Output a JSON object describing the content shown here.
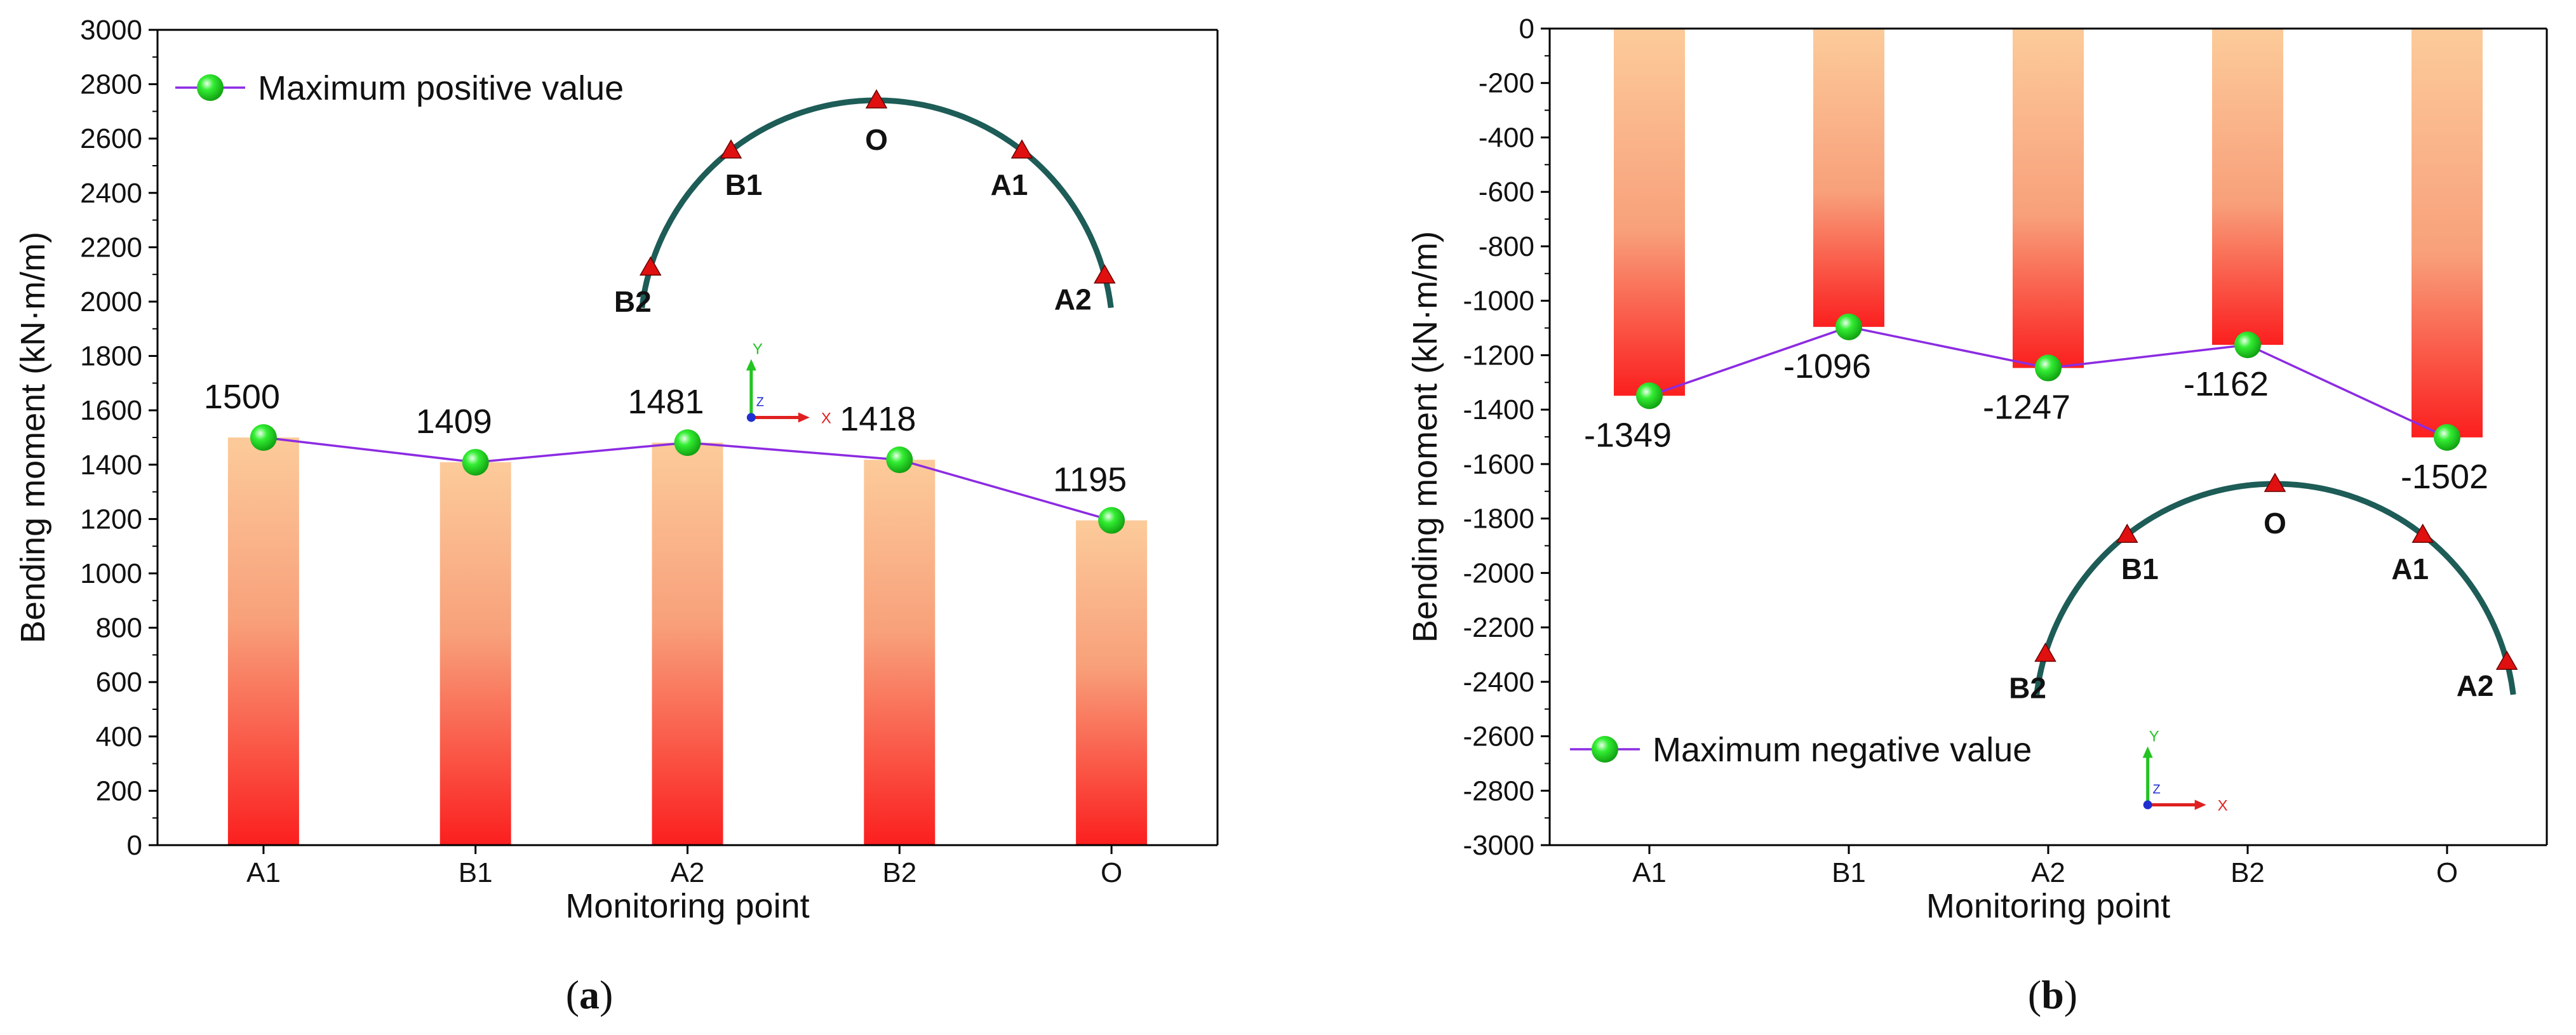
{
  "chart_data": [
    {
      "type": "bar",
      "panel_label": "a",
      "title": "",
      "xlabel": "Monitoring point",
      "ylabel": "Bending moment (kN·m/m)",
      "ylim": [
        0,
        3000
      ],
      "yticks": [
        0,
        200,
        400,
        600,
        800,
        1000,
        1200,
        1400,
        1600,
        1800,
        2000,
        2200,
        2400,
        2600,
        2800,
        3000
      ],
      "categories": [
        "A1",
        "B1",
        "A2",
        "B2",
        "O"
      ],
      "values": [
        1500,
        1409,
        1481,
        1418,
        1195
      ],
      "data_labels": [
        "1500",
        "1409",
        "1481",
        "1418",
        "1195"
      ],
      "series": [
        {
          "name": "Maximum positive value",
          "values": [
            1500,
            1409,
            1481,
            1418,
            1195
          ]
        }
      ],
      "legend": {
        "position": "top-left",
        "entries": [
          "Maximum positive value"
        ]
      },
      "inset": {
        "points": [
          "B2",
          "B1",
          "O",
          "A1",
          "A2"
        ],
        "axes": [
          "Y",
          "X",
          "Z"
        ]
      },
      "colors": {
        "bar_top": "#fccb9a",
        "bar_bottom": "#fb1f1f",
        "line": "#8c2be2",
        "marker": "#33ee33",
        "triangle": "#e01010",
        "arch": "#1d5c57"
      }
    },
    {
      "type": "bar",
      "panel_label": "b",
      "title": "",
      "xlabel": "Monitoring point",
      "ylabel": "Bending moment (kN·m/m)",
      "ylim": [
        -3000,
        0
      ],
      "yticks": [
        0,
        -200,
        -400,
        -600,
        -800,
        -1000,
        -1200,
        -1400,
        -1600,
        -1800,
        -2000,
        -2200,
        -2400,
        -2600,
        -2800,
        -3000
      ],
      "categories": [
        "A1",
        "B1",
        "A2",
        "B2",
        "O"
      ],
      "values": [
        -1349,
        -1096,
        -1247,
        -1162,
        -1502
      ],
      "data_labels": [
        "-1349",
        "-1096",
        "-1247",
        "-1162",
        "-1502"
      ],
      "series": [
        {
          "name": "Maximum negative value",
          "values": [
            -1349,
            -1096,
            -1247,
            -1162,
            -1502
          ]
        }
      ],
      "legend": {
        "position": "bottom-left",
        "entries": [
          "Maximum negative value"
        ]
      },
      "inset": {
        "points": [
          "B2",
          "B1",
          "O",
          "A1",
          "A2"
        ],
        "axes": [
          "Y",
          "X",
          "Z"
        ]
      },
      "colors": {
        "bar_top": "#fccb9a",
        "bar_bottom": "#fb1f1f",
        "line": "#8c2be2",
        "marker": "#33ee33",
        "triangle": "#e01010",
        "arch": "#1d5c57"
      }
    }
  ]
}
